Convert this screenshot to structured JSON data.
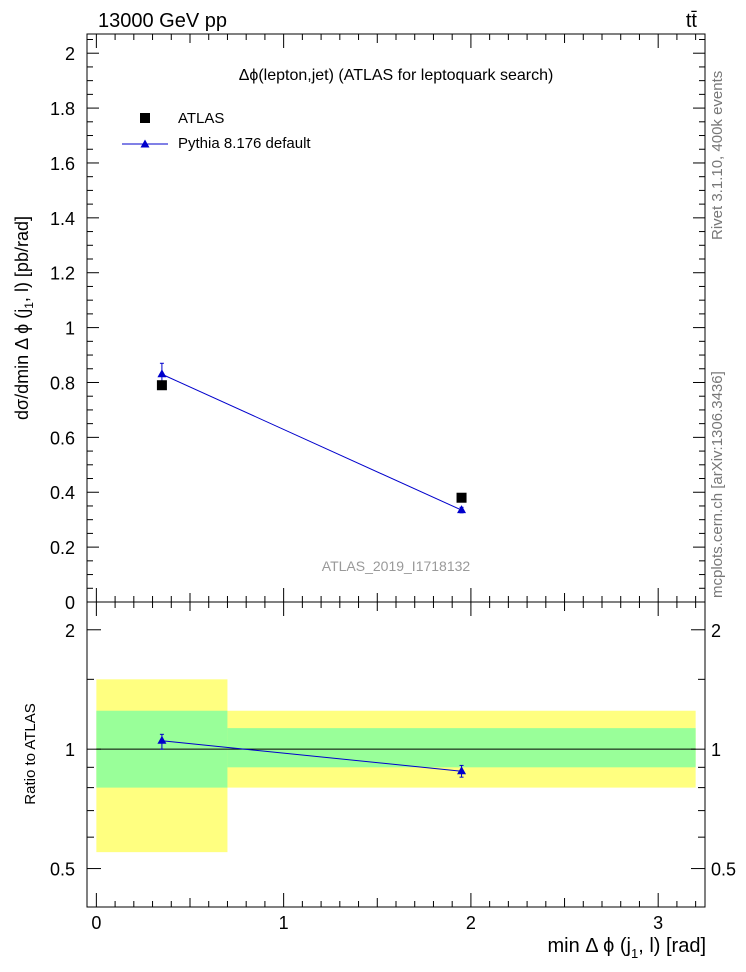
{
  "header": {
    "energy_label": "13000 GeV pp",
    "process_label": "tt̄"
  },
  "side": {
    "rivet_label": "Rivet 3.1.10,  400k events",
    "mcplots_label": "mcplots.cern.ch [arXiv:1306.3436]"
  },
  "colors": {
    "mc_line": "#0000cc",
    "data_marker": "#000000",
    "band_outer": "#ffff80",
    "band_inner": "#99ff99",
    "watermark": "#999999"
  },
  "chart_data": [
    {
      "type": "scatter",
      "title": "Δϕ(lepton,jet) (ATLAS for leptoquark search)",
      "ylabel_parts": {
        "main": "dσ/dmin Δ ϕ (j",
        "sub": "1",
        "rest": ", l) [pb/rad]"
      },
      "analysis_label": "ATLAS_2019_I1718132",
      "xlim": [
        -0.05,
        3.25
      ],
      "ylim": [
        0,
        2.07
      ],
      "yticks": [
        0,
        0.2,
        0.4,
        0.6,
        0.8,
        1,
        1.2,
        1.4,
        1.6,
        1.8,
        2
      ],
      "ytick_labels": [
        "0",
        "0.2",
        "0.4",
        "0.6",
        "0.8",
        "1",
        "1.2",
        "1.4",
        "1.6",
        "1.8",
        "2"
      ],
      "legend_position": "top-left",
      "series": [
        {
          "name": "ATLAS",
          "marker": "square",
          "points": [
            {
              "x": 0.35,
              "y": 0.79,
              "xlo": 0.0,
              "xhi": 0.7
            },
            {
              "x": 1.95,
              "y": 0.38,
              "xlo": 0.7,
              "xhi": 3.2
            }
          ]
        },
        {
          "name": "Pythia 8.176 default",
          "marker": "triangle",
          "points": [
            {
              "x": 0.35,
              "y": 0.83,
              "yerr": 0.04
            },
            {
              "x": 1.95,
              "y": 0.335,
              "yerr": 0.01
            }
          ]
        }
      ]
    },
    {
      "type": "scatter",
      "ylabel": "Ratio to ATLAS",
      "xlabel_parts": {
        "main": "min Δ ϕ (j",
        "sub": "1",
        "rest": ", l) [rad]"
      },
      "xlim": [
        -0.05,
        3.25
      ],
      "ylim": [
        0.4,
        2.35
      ],
      "y_scale": "log",
      "yticks": [
        0.5,
        1,
        2
      ],
      "ytick_labels": [
        "0.5",
        "1",
        "2"
      ],
      "xticks": [
        0,
        1,
        2,
        3
      ],
      "xtick_labels": [
        "0",
        "1",
        "2",
        "3"
      ],
      "bands": [
        {
          "xlo": 0.0,
          "xhi": 0.7,
          "outer": [
            0.55,
            1.5
          ],
          "inner": [
            0.8,
            1.25
          ]
        },
        {
          "xlo": 0.7,
          "xhi": 3.2,
          "outer": [
            0.8,
            1.25
          ],
          "inner": [
            0.9,
            1.13
          ]
        }
      ],
      "series": [
        {
          "name": "Pythia 8.176 default",
          "points": [
            {
              "x": 0.35,
              "y": 1.05,
              "ylo": 1.0,
              "yhi": 1.09
            },
            {
              "x": 1.95,
              "y": 0.88,
              "ylo": 0.85,
              "yhi": 0.91
            }
          ]
        }
      ]
    }
  ]
}
